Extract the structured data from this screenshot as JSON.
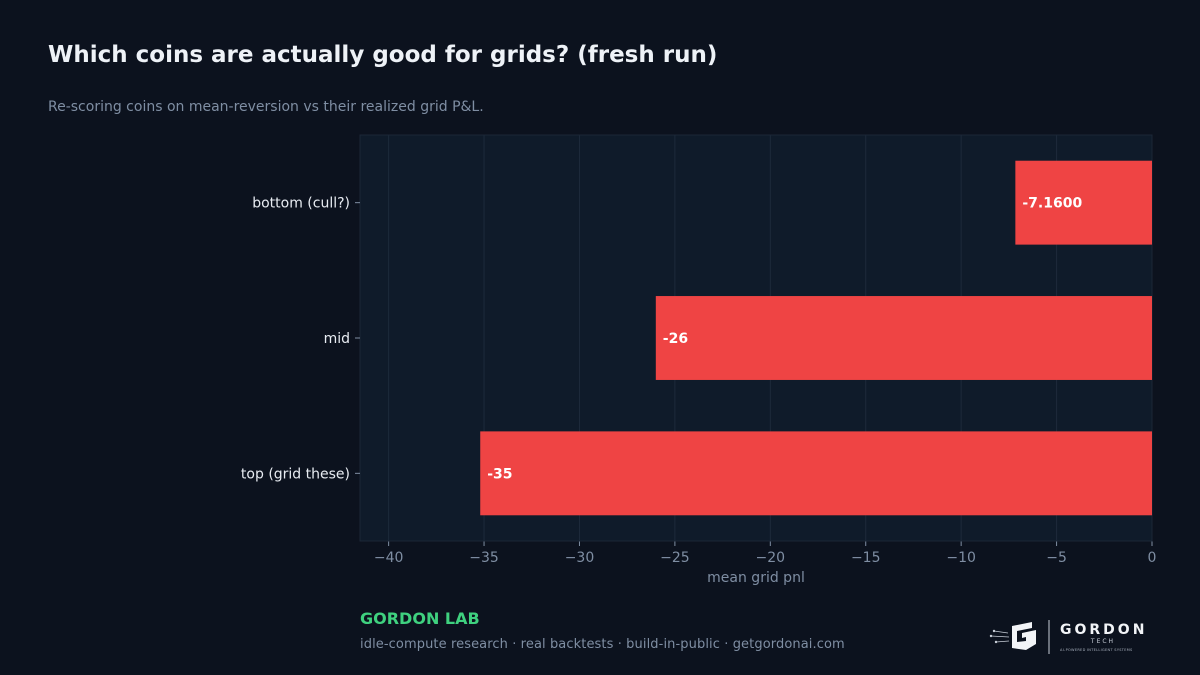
{
  "header": {
    "title": "Which coins are actually good for grids? (fresh run)",
    "subtitle": "Re-scoring coins on mean-reversion vs their realized grid P&L."
  },
  "footer": {
    "brand": "GORDON LAB",
    "tagline": "idle-compute research · real backtests · build-in-public · getgordonai.com",
    "logo_name": "GORDON",
    "logo_sub": "TECH",
    "logo_tagline": "AI-POWERED INTELLIGENT SYSTEMS"
  },
  "colors": {
    "background": "#0c121e",
    "plot_background": "#0f1b2a",
    "bar": "#ef4444",
    "brand_green": "#3fd17f",
    "axis_text": "#7f8ea3",
    "category_text": "#e8ecf2"
  },
  "chart_data": {
    "type": "bar",
    "orientation": "horizontal",
    "categories": [
      "bottom (cull?)",
      "mid",
      "top (grid these)"
    ],
    "values": [
      -7.16,
      -26,
      -35.2
    ],
    "data_labels": [
      "-7.1600",
      "-26",
      "-35"
    ],
    "xlabel": "mean grid pnl",
    "ylabel": "",
    "xlim": [
      -41.5,
      0
    ],
    "xticks": [
      -40,
      -35,
      -30,
      -25,
      -20,
      -15,
      -10,
      -5,
      0
    ],
    "xtick_labels": [
      "−40",
      "−35",
      "−30",
      "−25",
      "−20",
      "−15",
      "−10",
      "−5",
      "0"
    ],
    "grid": "vertical",
    "legend": "none"
  }
}
